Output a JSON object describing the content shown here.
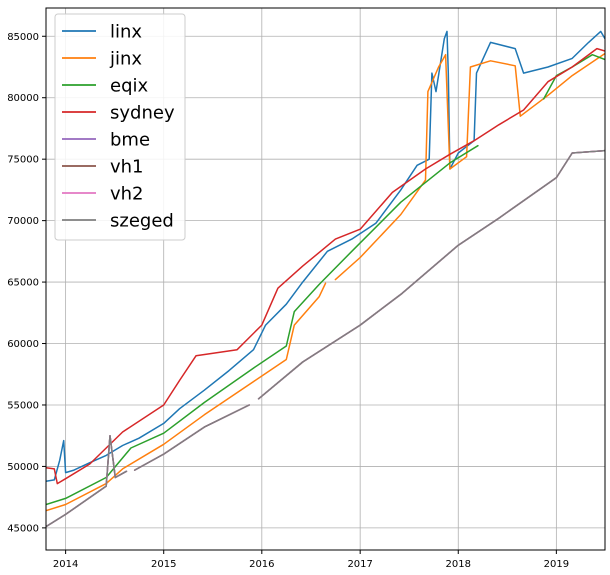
{
  "chart_data": {
    "type": "line",
    "xlim": [
      "2013-10-20",
      "2019-07-01"
    ],
    "ylim": [
      43200,
      87300
    ],
    "grid": true,
    "legend_position": "top-left",
    "x_ticks": [
      {
        "value": "2014-01-01",
        "label": "2014"
      },
      {
        "value": "2015-01-01",
        "label": "2015"
      },
      {
        "value": "2016-01-01",
        "label": "2016"
      },
      {
        "value": "2017-01-01",
        "label": "2017"
      },
      {
        "value": "2018-01-01",
        "label": "2018"
      },
      {
        "value": "2019-01-01",
        "label": "2019"
      }
    ],
    "y_ticks": [
      {
        "value": 45000,
        "label": "45000"
      },
      {
        "value": 50000,
        "label": "50000"
      },
      {
        "value": 55000,
        "label": "55000"
      },
      {
        "value": 60000,
        "label": "60000"
      },
      {
        "value": 65000,
        "label": "65000"
      },
      {
        "value": 70000,
        "label": "70000"
      },
      {
        "value": 75000,
        "label": "75000"
      },
      {
        "value": 80000,
        "label": "80000"
      },
      {
        "value": 85000,
        "label": "85000"
      }
    ],
    "series": [
      {
        "name": "linx",
        "color": "#1f77b4",
        "points": [
          [
            "2013-10-20",
            48800
          ],
          [
            "2013-11-20",
            48900
          ],
          [
            "2013-12-10",
            50500
          ],
          [
            "2013-12-25",
            52100
          ],
          [
            "2014-01-01",
            49500
          ],
          [
            "2014-02-01",
            49700
          ],
          [
            "2014-04-01",
            50300
          ],
          [
            "2014-06-01",
            50900
          ],
          [
            "2014-08-01",
            51700
          ],
          [
            "2014-10-01",
            52300
          ],
          [
            "2015-01-01",
            53500
          ],
          [
            "2015-03-01",
            54700
          ],
          [
            "2015-06-01",
            56200
          ],
          [
            "2015-09-01",
            57800
          ],
          [
            "2015-12-01",
            59500
          ],
          [
            "2016-01-15",
            61500
          ],
          [
            "2016-04-01",
            63200
          ],
          [
            "2016-06-01",
            65000
          ],
          [
            "2016-09-01",
            67500
          ],
          [
            "2016-12-01",
            68500
          ],
          [
            "2017-03-01",
            69800
          ],
          [
            "2017-06-01",
            72500
          ],
          [
            "2017-08-01",
            74500
          ],
          [
            "2017-09-15",
            75000
          ],
          [
            "2017-09-25",
            82000
          ],
          [
            "2017-10-10",
            80500
          ],
          [
            "2017-11-10",
            84800
          ],
          [
            "2017-11-20",
            85400
          ],
          [
            "2017-11-25",
            82000
          ],
          [
            "2017-12-01",
            74200
          ],
          [
            "2018-01-01",
            75500
          ],
          [
            "2018-03-01",
            76500
          ],
          [
            "2018-03-10",
            82000
          ],
          [
            "2018-05-01",
            84500
          ],
          [
            "2018-08-01",
            84000
          ],
          [
            "2018-09-01",
            82000
          ],
          [
            "2018-12-01",
            82500
          ],
          [
            "2019-03-01",
            83200
          ],
          [
            "2019-05-01",
            84500
          ],
          [
            "2019-06-15",
            85400
          ],
          [
            "2019-07-01",
            84800
          ]
        ]
      },
      {
        "name": "jinx",
        "color": "#ff7f0e",
        "points": [
          [
            "2013-10-20",
            46400
          ],
          [
            "2014-01-01",
            46900
          ],
          [
            "2014-06-01",
            48600
          ],
          [
            "2014-08-01",
            49800
          ],
          [
            "2015-01-01",
            51800
          ],
          [
            "2015-06-01",
            54200
          ],
          [
            "2015-12-01",
            56900
          ],
          [
            "2016-04-01",
            58700
          ],
          [
            "2016-05-01",
            61500
          ],
          [
            "2016-08-01",
            63800
          ],
          [
            "2016-08-25",
            64900
          ],
          [
            "null",
            null
          ],
          [
            "2016-10-01",
            65200
          ],
          [
            "2017-01-01",
            67000
          ],
          [
            "2017-06-01",
            70500
          ],
          [
            "2017-09-01",
            73300
          ],
          [
            "2017-09-10",
            80500
          ],
          [
            "2017-10-20",
            82500
          ],
          [
            "2017-11-15",
            83500
          ],
          [
            "2017-12-01",
            74200
          ],
          [
            "2018-02-01",
            75200
          ],
          [
            "2018-02-15",
            82500
          ],
          [
            "2018-05-01",
            83000
          ],
          [
            "2018-08-01",
            82600
          ],
          [
            "2018-08-20",
            78500
          ],
          [
            "2018-12-01",
            80200
          ],
          [
            "2019-03-01",
            81800
          ],
          [
            "2019-07-01",
            83600
          ]
        ]
      },
      {
        "name": "eqix",
        "color": "#2ca02c",
        "points": [
          [
            "2013-10-20",
            46900
          ],
          [
            "2014-01-01",
            47400
          ],
          [
            "2014-06-01",
            49100
          ],
          [
            "2014-09-01",
            51500
          ],
          [
            "2015-01-01",
            52700
          ],
          [
            "2015-06-01",
            55200
          ],
          [
            "2015-12-01",
            58000
          ],
          [
            "2016-04-01",
            59800
          ],
          [
            "2016-05-01",
            62600
          ],
          [
            "2016-08-01",
            64800
          ],
          [
            "2016-12-01",
            67500
          ],
          [
            "2017-06-01",
            71500
          ],
          [
            "2017-12-01",
            74700
          ],
          [
            "2018-03-15",
            76100
          ],
          [
            "null",
            null
          ],
          [
            "2018-11-15",
            79900
          ],
          [
            "2019-01-01",
            81800
          ],
          [
            "2019-03-01",
            82500
          ],
          [
            "2019-05-15",
            83500
          ],
          [
            "2019-07-01",
            83100
          ]
        ]
      },
      {
        "name": "sydney",
        "color": "#d62728",
        "points": [
          [
            "2013-10-20",
            49900
          ],
          [
            "2013-11-20",
            49800
          ],
          [
            "2013-12-01",
            48600
          ],
          [
            "2014-01-01",
            49000
          ],
          [
            "2014-04-01",
            50200
          ],
          [
            "2014-08-01",
            52800
          ],
          [
            "2015-01-01",
            55000
          ],
          [
            "2015-03-01",
            57000
          ],
          [
            "2015-05-01",
            59000
          ],
          [
            "2015-10-01",
            59500
          ],
          [
            "2016-01-01",
            61500
          ],
          [
            "2016-03-01",
            64500
          ],
          [
            "2016-06-01",
            66300
          ],
          [
            "2016-10-01",
            68500
          ],
          [
            "2017-01-01",
            69300
          ],
          [
            "2017-05-01",
            72300
          ],
          [
            "2017-09-01",
            74200
          ],
          [
            "2017-12-01",
            75400
          ],
          [
            "2018-03-01",
            76500
          ],
          [
            "2018-06-01",
            77800
          ],
          [
            "2018-09-01",
            79000
          ],
          [
            "2018-12-01",
            81300
          ],
          [
            "2019-03-01",
            82500
          ],
          [
            "2019-06-01",
            84000
          ],
          [
            "2019-07-01",
            83800
          ]
        ]
      },
      {
        "name": "bme",
        "color": "#9467bd",
        "points": [
          [
            "2013-10-20",
            45100
          ],
          [
            "2014-01-01",
            46100
          ],
          [
            "2014-06-01",
            48400
          ],
          [
            "2014-06-15",
            52500
          ],
          [
            "2014-07-05",
            49100
          ],
          [
            "2014-08-15",
            49600
          ],
          [
            "null",
            null
          ],
          [
            "2014-09-15",
            49700
          ],
          [
            "2015-01-01",
            51000
          ],
          [
            "2015-06-01",
            53200
          ],
          [
            "2015-11-15",
            55000
          ],
          [
            "null",
            null
          ],
          [
            "2015-12-20",
            55500
          ],
          [
            "2016-06-01",
            58500
          ],
          [
            "2017-01-01",
            61500
          ],
          [
            "2017-06-01",
            64000
          ],
          [
            "2018-01-01",
            68000
          ],
          [
            "2018-06-01",
            70200
          ],
          [
            "2019-01-01",
            73500
          ],
          [
            "2019-03-01",
            75500
          ],
          [
            "2019-07-01",
            75700
          ]
        ]
      },
      {
        "name": "vh1",
        "color": "#8c564b",
        "points": [
          [
            "2013-10-20",
            45100
          ],
          [
            "2014-01-01",
            46100
          ],
          [
            "2014-06-01",
            48400
          ],
          [
            "2014-06-15",
            52500
          ],
          [
            "2014-07-05",
            49100
          ],
          [
            "2014-08-15",
            49600
          ],
          [
            "null",
            null
          ],
          [
            "2014-09-15",
            49700
          ],
          [
            "2015-01-01",
            51000
          ],
          [
            "2015-06-01",
            53200
          ],
          [
            "2015-11-15",
            55000
          ],
          [
            "null",
            null
          ],
          [
            "2015-12-20",
            55500
          ],
          [
            "2016-06-01",
            58500
          ],
          [
            "2017-01-01",
            61500
          ],
          [
            "2017-06-01",
            64000
          ],
          [
            "2018-01-01",
            68000
          ],
          [
            "2018-06-01",
            70200
          ],
          [
            "2019-01-01",
            73500
          ],
          [
            "2019-03-01",
            75500
          ],
          [
            "2019-07-01",
            75700
          ]
        ]
      },
      {
        "name": "vh2",
        "color": "#e377c2",
        "points": [
          [
            "2013-10-20",
            45100
          ],
          [
            "2014-01-01",
            46100
          ],
          [
            "2014-06-01",
            48400
          ],
          [
            "2014-06-15",
            52500
          ],
          [
            "2014-07-05",
            49100
          ],
          [
            "2014-08-15",
            49600
          ],
          [
            "null",
            null
          ],
          [
            "2014-09-15",
            49700
          ],
          [
            "2015-01-01",
            51000
          ],
          [
            "2015-06-01",
            53200
          ],
          [
            "2015-11-15",
            55000
          ],
          [
            "null",
            null
          ],
          [
            "2015-12-20",
            55500
          ],
          [
            "2016-06-01",
            58500
          ],
          [
            "2017-01-01",
            61500
          ],
          [
            "2017-06-01",
            64000
          ],
          [
            "2018-01-01",
            68000
          ],
          [
            "2018-06-01",
            70200
          ],
          [
            "2019-01-01",
            73500
          ],
          [
            "2019-03-01",
            75500
          ],
          [
            "2019-07-01",
            75700
          ]
        ]
      },
      {
        "name": "szeged",
        "color": "#7f7f7f",
        "points": [
          [
            "2013-10-20",
            45100
          ],
          [
            "2014-01-01",
            46100
          ],
          [
            "2014-06-01",
            48400
          ],
          [
            "2014-06-15",
            52500
          ],
          [
            "2014-07-05",
            49100
          ],
          [
            "2014-08-15",
            49600
          ],
          [
            "null",
            null
          ],
          [
            "2014-09-15",
            49700
          ],
          [
            "2015-01-01",
            51000
          ],
          [
            "2015-06-01",
            53200
          ],
          [
            "2015-11-15",
            55000
          ],
          [
            "null",
            null
          ],
          [
            "2015-12-20",
            55500
          ],
          [
            "2016-06-01",
            58500
          ],
          [
            "2017-01-01",
            61500
          ],
          [
            "2017-06-01",
            64000
          ],
          [
            "2018-01-01",
            68000
          ],
          [
            "2018-06-01",
            70200
          ],
          [
            "2019-01-01",
            73500
          ],
          [
            "2019-03-01",
            75500
          ],
          [
            "2019-07-01",
            75700
          ]
        ]
      }
    ]
  }
}
